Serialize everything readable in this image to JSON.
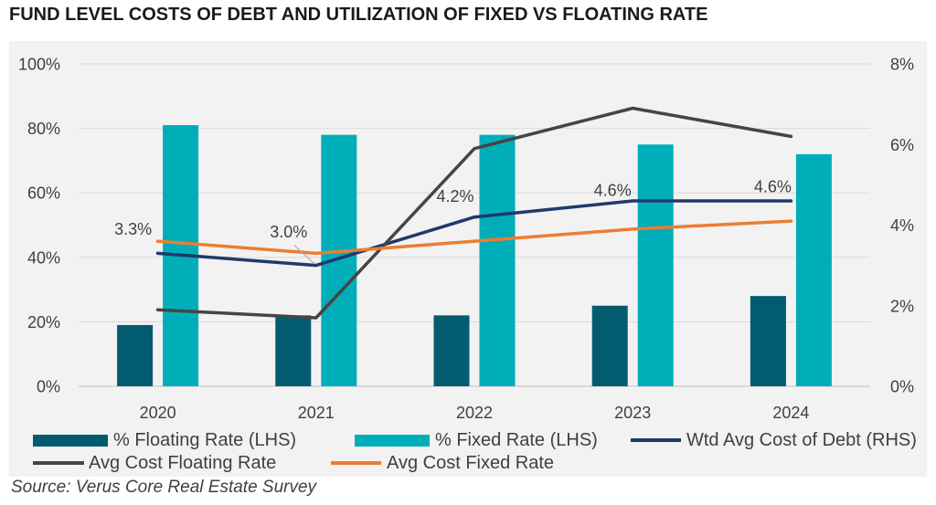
{
  "title": "FUND LEVEL COSTS OF DEBT AND UTILIZATION OF FIXED VS FLOATING RATE",
  "source": "Source: Verus Core Real Estate Survey",
  "chart_data": {
    "type": "bar",
    "categories": [
      "2020",
      "2021",
      "2022",
      "2023",
      "2024"
    ],
    "y_left": {
      "ticks": [
        "0%",
        "20%",
        "40%",
        "60%",
        "80%",
        "100%"
      ],
      "range": [
        0,
        100
      ]
    },
    "y_right": {
      "ticks": [
        "0%",
        "2%",
        "4%",
        "6%",
        "8%"
      ],
      "range": [
        0,
        8
      ]
    },
    "series": [
      {
        "name": "% Floating Rate (LHS)",
        "type": "bar",
        "axis": "left",
        "color": "#035b6f",
        "values": [
          19,
          22,
          22,
          25,
          28
        ]
      },
      {
        "name": "% Fixed Rate (LHS)",
        "type": "bar",
        "axis": "left",
        "color": "#00aeb9",
        "values": [
          81,
          78,
          78,
          75,
          72
        ]
      },
      {
        "name": "Wtd Avg Cost of Debt (RHS)",
        "type": "line",
        "axis": "right",
        "color": "#1f3a6b",
        "values": [
          3.3,
          3.0,
          4.2,
          4.6,
          4.6
        ],
        "data_labels": [
          "3.3%",
          "3.0%",
          "4.2%",
          "4.6%",
          "4.6%"
        ]
      },
      {
        "name": "Avg Cost Floating Rate",
        "type": "line",
        "axis": "right",
        "color": "#454545",
        "values": [
          1.9,
          1.7,
          5.9,
          6.9,
          6.2
        ]
      },
      {
        "name": "Avg Cost Fixed Rate",
        "type": "line",
        "axis": "right",
        "color": "#ed7d31",
        "values": [
          3.6,
          3.3,
          3.6,
          3.9,
          4.1
        ]
      }
    ],
    "grid": true,
    "legend": "bottom"
  }
}
